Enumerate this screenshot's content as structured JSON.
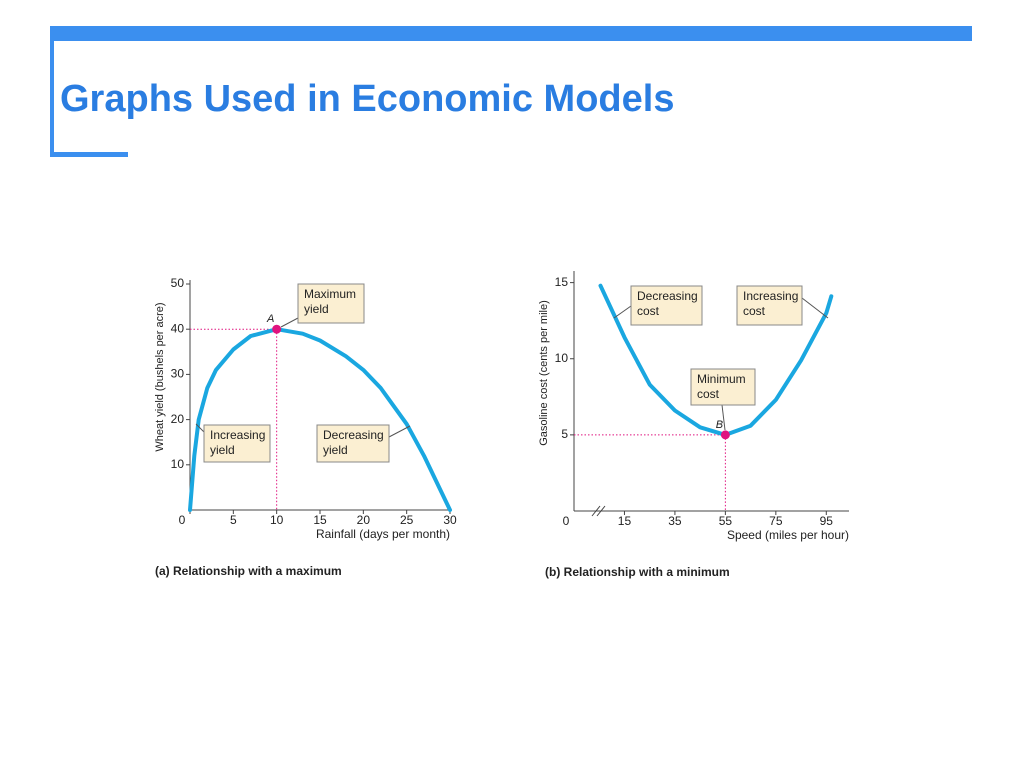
{
  "title": "Graphs Used in Economic Models",
  "chart_data": [
    {
      "type": "line",
      "caption": "(a) Relationship with a maximum",
      "xlabel": "Rainfall (days per month)",
      "ylabel": "Wheat yield (bushels per acre)",
      "x": [
        0,
        0.5,
        1,
        2,
        3,
        5,
        7,
        10,
        13,
        15,
        18,
        20,
        22,
        25,
        27,
        29,
        30
      ],
      "values": [
        0,
        12,
        20,
        27,
        31,
        35.5,
        38.5,
        40,
        39,
        37.5,
        34,
        31,
        27,
        19,
        12,
        4,
        0
      ],
      "color": "#1aa7e0",
      "xlim": [
        0,
        30
      ],
      "xticks": [
        0,
        5,
        10,
        15,
        20,
        25,
        30
      ],
      "ylim": [
        0,
        50
      ],
      "yticks": [
        10,
        20,
        30,
        40,
        50
      ],
      "point": {
        "label": "A",
        "x": 10,
        "y": 40,
        "color": "#e0137f"
      },
      "annotations": [
        {
          "text": [
            "Maximum",
            "yield"
          ]
        },
        {
          "text": [
            "Increasing",
            "yield"
          ]
        },
        {
          "text": [
            "Decreasing",
            "yield"
          ]
        }
      ]
    },
    {
      "type": "line",
      "caption": "(b) Relationship with a minimum",
      "xlabel": "Speed (miles per hour)",
      "ylabel": "Gasoline cost (cents per mile)",
      "origin_label": "0",
      "x": [
        5.5,
        15,
        25,
        35,
        45,
        55,
        65,
        75,
        85,
        95,
        97
      ],
      "values": [
        14.8,
        11.4,
        8.3,
        6.6,
        5.5,
        5,
        5.6,
        7.3,
        9.9,
        13,
        14.1
      ],
      "color": "#1aa7e0",
      "xlim": [
        -5,
        104
      ],
      "xticks": [
        15,
        35,
        55,
        75,
        95
      ],
      "ylim": [
        0,
        15.5
      ],
      "yticks": [
        5,
        10,
        15
      ],
      "point": {
        "label": "B",
        "x": 55,
        "y": 5,
        "color": "#e0137f"
      },
      "annotations": [
        {
          "text": [
            "Decreasing",
            "cost"
          ]
        },
        {
          "text": [
            "Increasing",
            "cost"
          ]
        },
        {
          "text": [
            "Minimum",
            "cost"
          ]
        }
      ]
    }
  ]
}
